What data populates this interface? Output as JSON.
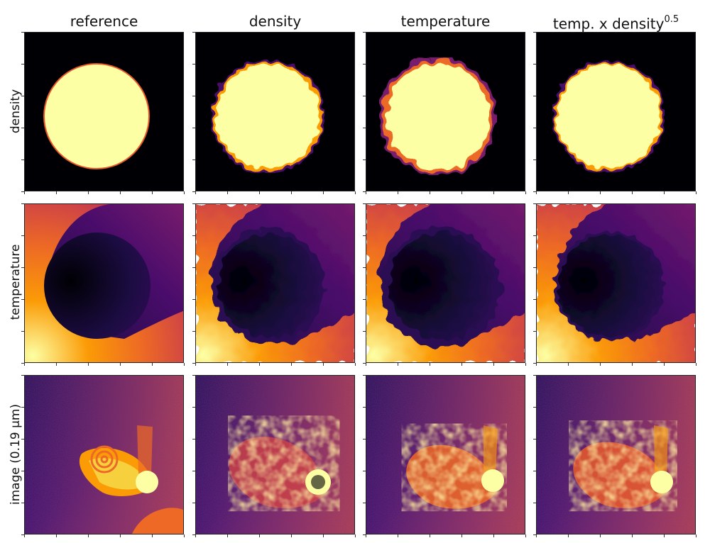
{
  "columns": [
    {
      "title": "reference"
    },
    {
      "title": "density"
    },
    {
      "title": "temperature"
    },
    {
      "title": "temp. x density",
      "superscript": "0.5"
    }
  ],
  "rows": [
    {
      "label": "density"
    },
    {
      "label": "temperature"
    },
    {
      "label": "image (0.19 μm)"
    }
  ],
  "colormap": "inferno",
  "colors": {
    "black": "#000004",
    "dark_purple": "#1b0c41",
    "purple": "#4a0c6b",
    "magenta": "#781c6d",
    "red": "#a52c60",
    "orange_red": "#cf4446",
    "orange": "#ed6925",
    "amber": "#fb9b06",
    "yellow": "#f7d13d",
    "pale_yellow": "#fcffa4"
  }
}
